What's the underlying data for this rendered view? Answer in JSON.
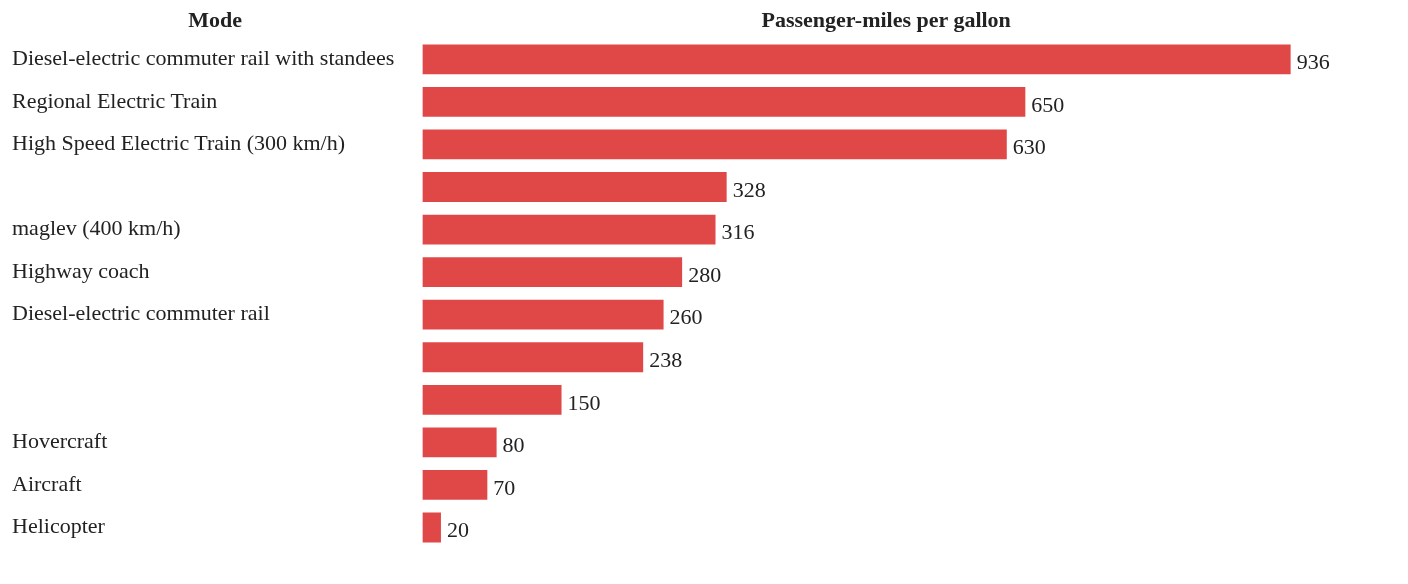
{
  "chart_data": {
    "type": "bar",
    "orientation": "horizontal",
    "ylabel": "Mode",
    "xlabel": "Passenger-miles per gallon",
    "categories": [
      "Diesel-electric commuter rail with standees",
      "Regional Electric Train",
      "High Speed Electric Train (300 km/h)",
      null,
      "maglev (400 km/h)",
      "Highway coach",
      "Diesel-electric commuter rail",
      null,
      null,
      "Hovercraft",
      "Aircraft",
      "Helicopter"
    ],
    "values": [
      936,
      650,
      630,
      328,
      316,
      280,
      260,
      238,
      150,
      80,
      70,
      20
    ],
    "color": "#e04848",
    "data_labels": true
  }
}
